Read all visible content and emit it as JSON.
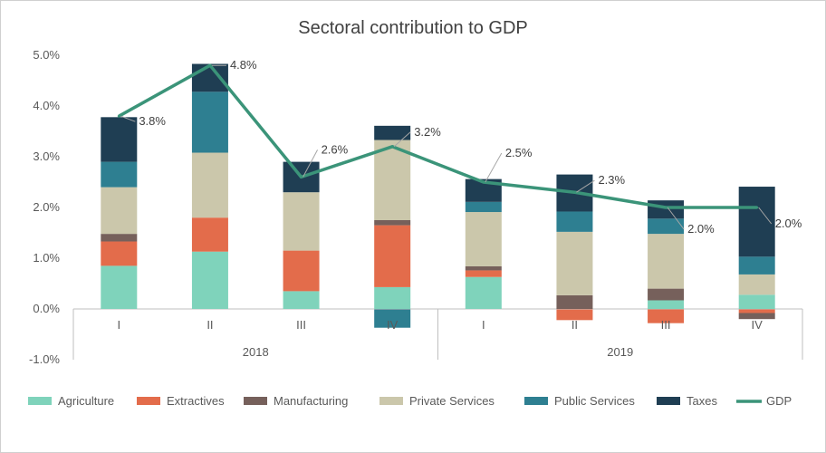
{
  "chart_data": {
    "type": "bar",
    "stacked": true,
    "title": "Sectoral contribution to GDP",
    "xlabel": "",
    "ylabel": "",
    "ylim": [
      -1.0,
      5.0
    ],
    "yticks": [
      "-1.0%",
      "0.0%",
      "1.0%",
      "2.0%",
      "3.0%",
      "4.0%",
      "5.0%"
    ],
    "categories": [
      "I",
      "II",
      "III",
      "IV",
      "I",
      "II",
      "III",
      "IV"
    ],
    "groups": [
      {
        "label": "2018",
        "count": 4
      },
      {
        "label": "2019",
        "count": 4
      }
    ],
    "grid": false,
    "legend_position": "bottom",
    "series": [
      {
        "name": "Agriculture",
        "color": "#7fd3bb",
        "values": [
          0.85,
          1.13,
          0.35,
          0.43,
          0.63,
          0.0,
          0.17,
          0.28
        ]
      },
      {
        "name": "Extractives",
        "color": "#e36c4b",
        "values": [
          0.48,
          0.67,
          0.8,
          1.22,
          0.13,
          -0.22,
          -0.28,
          -0.08
        ]
      },
      {
        "name": "Manufacturing",
        "color": "#76605b",
        "values": [
          0.15,
          0.0,
          0.0,
          0.1,
          0.08,
          0.27,
          0.23,
          -0.12
        ]
      },
      {
        "name": "Private Services",
        "color": "#cbc7ab",
        "values": [
          0.92,
          1.28,
          1.15,
          1.58,
          1.07,
          1.25,
          1.08,
          0.4
        ]
      },
      {
        "name": "Public Services",
        "color": "#2e7f91",
        "values": [
          0.5,
          1.2,
          0.0,
          -0.37,
          0.2,
          0.4,
          0.3,
          0.35
        ]
      },
      {
        "name": "Taxes",
        "color": "#1f3e53",
        "values": [
          0.88,
          0.55,
          0.6,
          0.28,
          0.45,
          0.73,
          0.36,
          1.38
        ]
      }
    ],
    "line_series": {
      "name": "GDP",
      "color": "#3b9479",
      "values": [
        3.8,
        4.8,
        2.6,
        3.2,
        2.5,
        2.3,
        2.0,
        2.0
      ],
      "data_labels": [
        "3.8%",
        "4.8%",
        "2.6%",
        "3.2%",
        "2.5%",
        "2.3%",
        "2.0%",
        "2.0%"
      ]
    }
  }
}
